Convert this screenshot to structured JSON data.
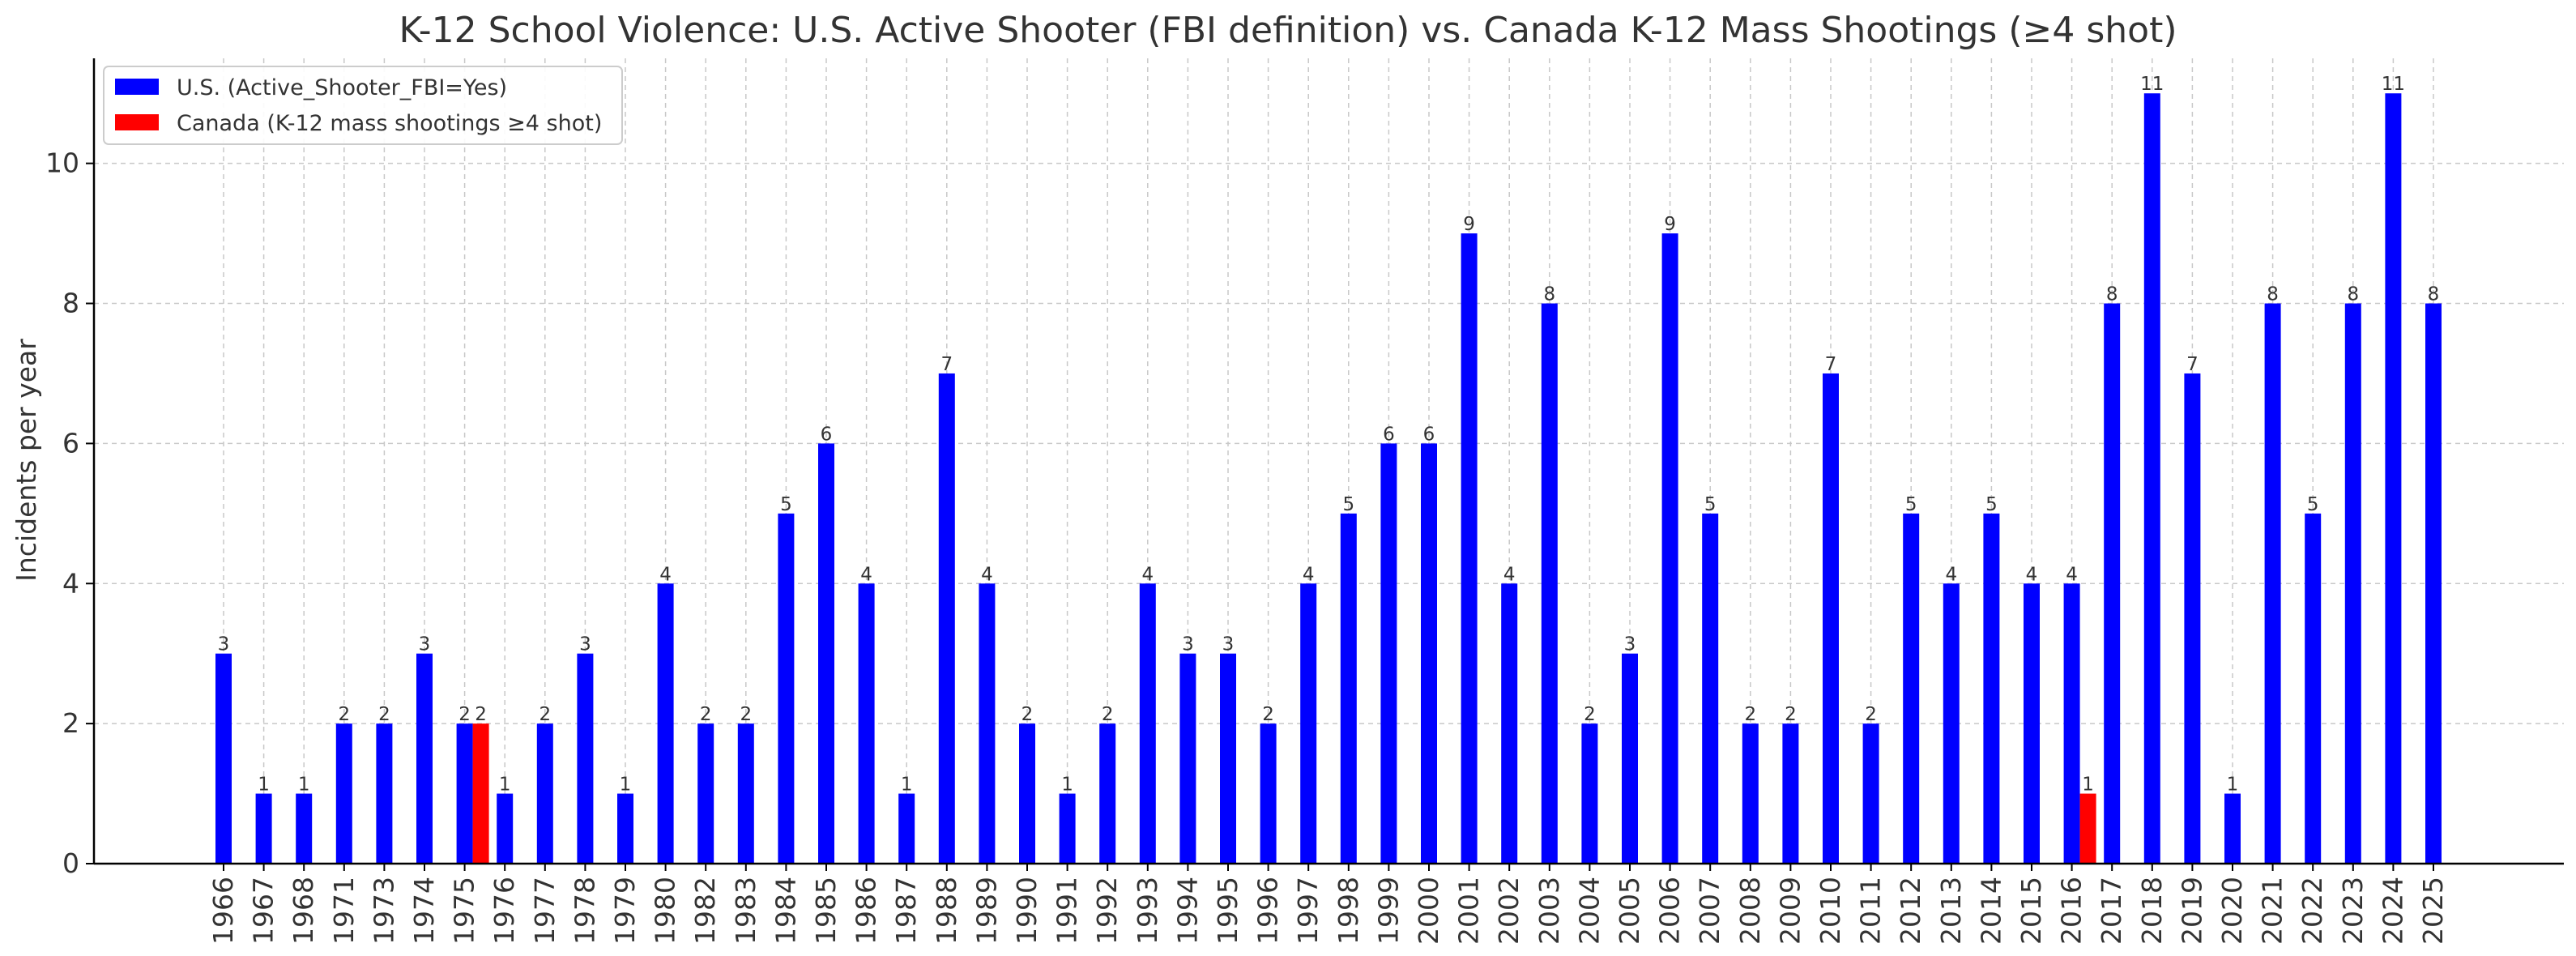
{
  "chart_data": {
    "type": "bar",
    "title": "K-12 School Violence: U.S. Active Shooter (FBI definition) vs. Canada K-12 Mass Shootings (≥4 shot)",
    "xlabel": "",
    "ylabel": "Incidents per year",
    "ylim": [
      0,
      11.5
    ],
    "yticks": [
      0,
      2,
      4,
      6,
      8,
      10
    ],
    "grid": true,
    "legend_position": "top-left",
    "categories": [
      "1966",
      "1967",
      "1968",
      "1971",
      "1973",
      "1974",
      "1975",
      "1976",
      "1977",
      "1978",
      "1979",
      "1980",
      "1982",
      "1983",
      "1984",
      "1985",
      "1986",
      "1987",
      "1988",
      "1989",
      "1990",
      "1991",
      "1992",
      "1993",
      "1994",
      "1995",
      "1996",
      "1997",
      "1998",
      "1999",
      "2000",
      "2001",
      "2002",
      "2003",
      "2004",
      "2005",
      "2006",
      "2007",
      "2008",
      "2009",
      "2010",
      "2011",
      "2012",
      "2013",
      "2014",
      "2015",
      "2016",
      "2017",
      "2018",
      "2019",
      "2020",
      "2021",
      "2022",
      "2023",
      "2024",
      "2025"
    ],
    "series": [
      {
        "name": "U.S. (Active_Shooter_FBI=Yes)",
        "color": "#0000ff",
        "values": [
          3,
          1,
          1,
          2,
          2,
          3,
          2,
          1,
          2,
          3,
          1,
          4,
          2,
          2,
          5,
          6,
          4,
          1,
          7,
          4,
          2,
          1,
          2,
          4,
          3,
          3,
          2,
          4,
          5,
          6,
          6,
          9,
          4,
          8,
          2,
          3,
          9,
          5,
          2,
          2,
          7,
          2,
          5,
          4,
          5,
          4,
          4,
          8,
          11,
          7,
          1,
          8,
          5,
          8,
          11,
          8
        ]
      },
      {
        "name": "Canada (K-12 mass shootings ≥4 shot)",
        "color": "#ff0000",
        "values": [
          0,
          0,
          0,
          0,
          0,
          0,
          2,
          0,
          0,
          0,
          0,
          0,
          0,
          0,
          0,
          0,
          0,
          0,
          0,
          0,
          0,
          0,
          0,
          0,
          0,
          0,
          0,
          0,
          0,
          0,
          0,
          0,
          0,
          0,
          0,
          0,
          0,
          0,
          0,
          0,
          0,
          0,
          0,
          0,
          0,
          0,
          1,
          0,
          0,
          0,
          0,
          0,
          0,
          0,
          0,
          0
        ]
      }
    ]
  }
}
